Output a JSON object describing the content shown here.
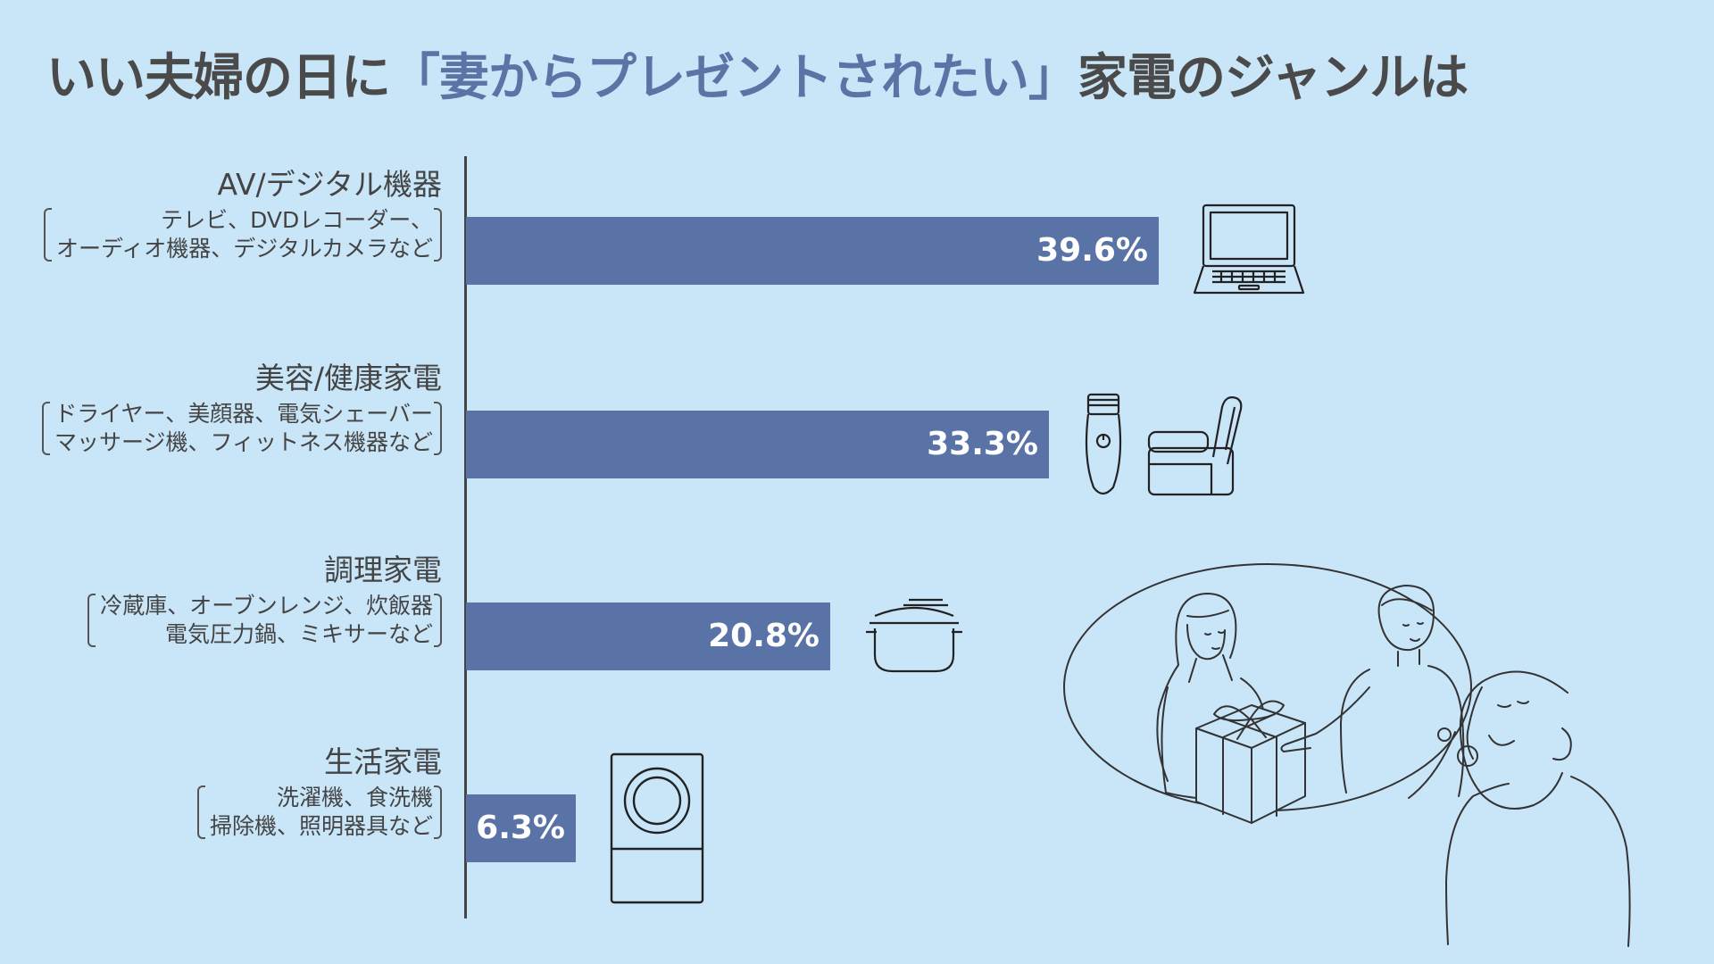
{
  "title": {
    "pre": "いい夫婦の日に",
    "highlight": "「妻からプレゼントされたい」",
    "post": "家電のジャンルは"
  },
  "colors": {
    "background": "#c9e5f8",
    "bar": "#5a73a6",
    "title_highlight": "#5a74a6",
    "text": "#444444"
  },
  "chart_data": {
    "type": "bar",
    "orientation": "horizontal",
    "value_suffix": "%",
    "categories": [
      "AV/デジタル機器",
      "美容/健康家電",
      "調理家電",
      "生活家電"
    ],
    "values": [
      39.6,
      33.3,
      20.8,
      6.3
    ],
    "data_labels": [
      "39.6%",
      "33.3%",
      "20.8%",
      "6.3%"
    ],
    "descriptions": [
      [
        "テレビ、DVDレコーダー、",
        "オーディオ機器、デジタルカメラなど"
      ],
      [
        "ドライヤー、美顔器、電気シェーバー",
        "マッサージ機、フィットネス機器など"
      ],
      [
        "冷蔵庫、オーブンレンジ、炊飯器",
        "電気圧力鍋、ミキサーなど"
      ],
      [
        "洗濯機、食洗機",
        "掃除機、照明器具など"
      ]
    ],
    "icons": [
      [
        "laptop-icon"
      ],
      [
        "shaver-icon",
        "massage-chair-icon"
      ],
      [
        "pot-icon"
      ],
      [
        "washing-machine-icon"
      ]
    ],
    "xlim": [
      0,
      50
    ],
    "grid": false,
    "legend": "none"
  },
  "illustration": "couple-gift-thought-bubble"
}
